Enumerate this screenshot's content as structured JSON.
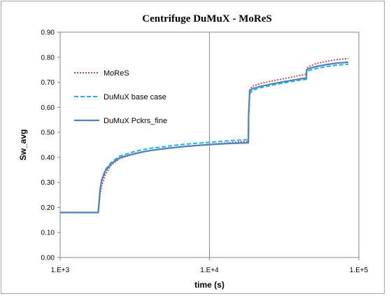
{
  "chart_data": {
    "type": "line",
    "title": "Centrifuge DuMuX - MoReS",
    "xlabel": "time (s)",
    "ylabel": "Sw_avg",
    "xscale": "log",
    "xlim": [
      1000,
      100000
    ],
    "ylim": [
      0,
      0.9
    ],
    "x_ticks": [
      "1.E+3",
      "1.E+4",
      "1.E+5"
    ],
    "y_ticks": [
      "0.00",
      "0.10",
      "0.20",
      "0.30",
      "0.40",
      "0.50",
      "0.60",
      "0.70",
      "0.80",
      "0.90"
    ],
    "grid": "vertical major",
    "legend_position": "upper-left",
    "series": [
      {
        "name": "MoReS",
        "color": "#c0504d",
        "style": "dotted",
        "points": [
          [
            1000,
            0.18
          ],
          [
            1800,
            0.18
          ],
          [
            1850,
            0.25
          ],
          [
            1900,
            0.29
          ],
          [
            2000,
            0.33
          ],
          [
            2200,
            0.37
          ],
          [
            2500,
            0.395
          ],
          [
            3000,
            0.41
          ],
          [
            3500,
            0.42
          ],
          [
            4000,
            0.427
          ],
          [
            5000,
            0.435
          ],
          [
            6000,
            0.44
          ],
          [
            7000,
            0.444
          ],
          [
            8000,
            0.447
          ],
          [
            10000,
            0.452
          ],
          [
            12000,
            0.456
          ],
          [
            14000,
            0.459
          ],
          [
            16000,
            0.462
          ],
          [
            18200,
            0.463
          ],
          [
            18300,
            0.57
          ],
          [
            18600,
            0.67
          ],
          [
            19500,
            0.685
          ],
          [
            22000,
            0.695
          ],
          [
            26000,
            0.705
          ],
          [
            30000,
            0.712
          ],
          [
            35000,
            0.72
          ],
          [
            40000,
            0.727
          ],
          [
            44500,
            0.732
          ],
          [
            44800,
            0.757
          ],
          [
            47000,
            0.765
          ],
          [
            52000,
            0.775
          ],
          [
            60000,
            0.783
          ],
          [
            70000,
            0.79
          ],
          [
            85000,
            0.795
          ]
        ]
      },
      {
        "name": "DuMuX base case",
        "color": "#1fb4e0",
        "style": "dashed",
        "points": [
          [
            1000,
            0.18
          ],
          [
            1800,
            0.18
          ],
          [
            1850,
            0.27
          ],
          [
            1900,
            0.31
          ],
          [
            2000,
            0.35
          ],
          [
            2200,
            0.38
          ],
          [
            2500,
            0.405
          ],
          [
            3000,
            0.42
          ],
          [
            3500,
            0.43
          ],
          [
            4000,
            0.436
          ],
          [
            5000,
            0.443
          ],
          [
            6000,
            0.449
          ],
          [
            7000,
            0.453
          ],
          [
            8000,
            0.456
          ],
          [
            10000,
            0.46
          ],
          [
            12000,
            0.464
          ],
          [
            14000,
            0.467
          ],
          [
            16000,
            0.469
          ],
          [
            18200,
            0.471
          ],
          [
            18300,
            0.57
          ],
          [
            18600,
            0.655
          ],
          [
            19500,
            0.668
          ],
          [
            22000,
            0.678
          ],
          [
            26000,
            0.688
          ],
          [
            30000,
            0.695
          ],
          [
            35000,
            0.702
          ],
          [
            40000,
            0.708
          ],
          [
            44500,
            0.712
          ],
          [
            44800,
            0.742
          ],
          [
            47000,
            0.748
          ],
          [
            52000,
            0.755
          ],
          [
            60000,
            0.762
          ],
          [
            70000,
            0.768
          ],
          [
            85000,
            0.772
          ]
        ]
      },
      {
        "name": "DuMuX Pckrs_fine",
        "color": "#4f81bd",
        "style": "solid",
        "points": [
          [
            1000,
            0.18
          ],
          [
            1800,
            0.18
          ],
          [
            1850,
            0.27
          ],
          [
            1900,
            0.31
          ],
          [
            2000,
            0.345
          ],
          [
            2200,
            0.375
          ],
          [
            2500,
            0.398
          ],
          [
            3000,
            0.412
          ],
          [
            3500,
            0.421
          ],
          [
            4000,
            0.427
          ],
          [
            5000,
            0.435
          ],
          [
            6000,
            0.44
          ],
          [
            7000,
            0.444
          ],
          [
            8000,
            0.447
          ],
          [
            10000,
            0.451
          ],
          [
            12000,
            0.454
          ],
          [
            14000,
            0.456
          ],
          [
            16000,
            0.457
          ],
          [
            18200,
            0.458
          ],
          [
            18300,
            0.57
          ],
          [
            18600,
            0.665
          ],
          [
            19500,
            0.675
          ],
          [
            22000,
            0.684
          ],
          [
            26000,
            0.693
          ],
          [
            30000,
            0.7
          ],
          [
            35000,
            0.707
          ],
          [
            40000,
            0.713
          ],
          [
            44500,
            0.717
          ],
          [
            44800,
            0.75
          ],
          [
            47000,
            0.756
          ],
          [
            52000,
            0.763
          ],
          [
            60000,
            0.77
          ],
          [
            70000,
            0.776
          ],
          [
            85000,
            0.78
          ]
        ]
      }
    ]
  }
}
